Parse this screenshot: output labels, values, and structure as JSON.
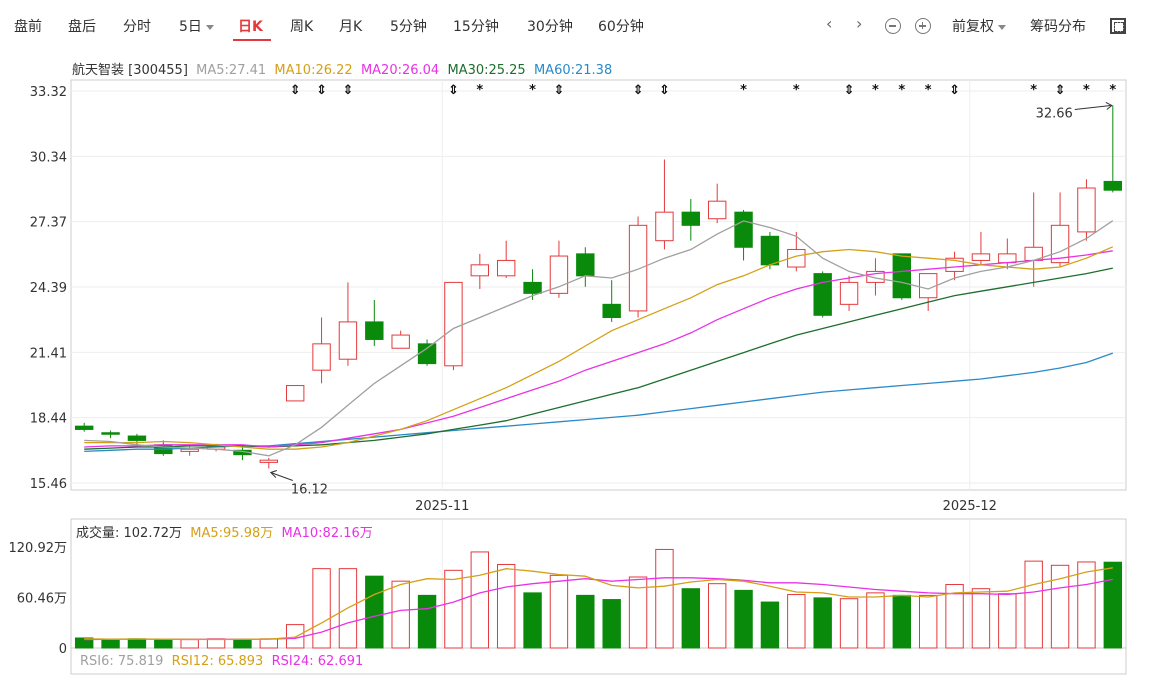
{
  "tabs": [
    {
      "label": "盘前",
      "dropdown": false
    },
    {
      "label": "盘后",
      "dropdown": false
    },
    {
      "label": "分时",
      "dropdown": false
    },
    {
      "label": "5日",
      "dropdown": true
    },
    {
      "label": "日K",
      "dropdown": false,
      "active": true
    },
    {
      "label": "周K",
      "dropdown": false
    },
    {
      "label": "月K",
      "dropdown": false
    },
    {
      "label": "5分钟",
      "dropdown": false
    },
    {
      "label": "15分钟",
      "dropdown": false
    },
    {
      "label": "30分钟",
      "dropdown": false
    },
    {
      "label": "60分钟",
      "dropdown": false
    }
  ],
  "controls": {
    "prev": "‹",
    "next": "›",
    "adjust_label": "前复权",
    "chip_label": "筹码分布",
    "icons": [
      "chevron-left-icon",
      "chevron-right-icon",
      "zoom-out-icon",
      "zoom-in-icon",
      "fullscreen-icon"
    ]
  },
  "info": {
    "stock": "航天智装 [300455]",
    "ma5": "MA5:27.41",
    "ma10": "MA10:26.22",
    "ma20": "MA20:26.04",
    "ma30": "MA30:25.25",
    "ma60": "MA60:21.38"
  },
  "volume_info": {
    "label": "成交量: 102.72万",
    "ma5": "MA5:95.98万",
    "ma10": "MA10:82.16万"
  },
  "rsi_info": {
    "rsi6": "RSI6: 75.819",
    "rsi12": "RSI12: 65.893",
    "rsi24": "RSI24: 62.691"
  },
  "colors": {
    "up": "#e4393c",
    "down": "#0a8a0a",
    "ma5": "#a0a0a0",
    "ma10": "#d4a017",
    "ma20": "#e832e8",
    "ma30": "#1e6e2e",
    "ma60": "#2a8ac8"
  },
  "chart_data": [
    {
      "type": "candlestick",
      "y_ticks": [
        "33.32",
        "30.34",
        "27.37",
        "24.39",
        "21.41",
        "18.44",
        "15.46"
      ],
      "ylim": [
        15.46,
        33.32
      ],
      "x_tick_labels": [
        {
          "label": "2025-11",
          "index": 14
        },
        {
          "label": "2025-12",
          "index": 34
        }
      ],
      "annotations": [
        {
          "label": "32.66",
          "index": 39,
          "value": 32.66
        },
        {
          "label": "16.12",
          "index": 7,
          "value": 16.12
        }
      ],
      "candles": [
        [
          18.05,
          17.9,
          18.2,
          17.8
        ],
        [
          17.75,
          17.7,
          17.85,
          17.5
        ],
        [
          17.6,
          17.4,
          17.7,
          17.2
        ],
        [
          17.2,
          16.8,
          17.4,
          16.7
        ],
        [
          16.9,
          17.0,
          17.2,
          16.7
        ],
        [
          17.0,
          17.1,
          17.25,
          16.9
        ],
        [
          16.95,
          16.75,
          17.1,
          16.5
        ],
        [
          16.4,
          16.5,
          16.6,
          16.12
        ],
        [
          19.2,
          19.9,
          19.9,
          19.2
        ],
        [
          20.6,
          21.8,
          23.0,
          20.0
        ],
        [
          21.1,
          22.8,
          24.6,
          20.8
        ],
        [
          22.8,
          22.0,
          23.8,
          21.7
        ],
        [
          21.6,
          22.2,
          22.4,
          21.6
        ],
        [
          21.8,
          20.9,
          22.0,
          20.8
        ],
        [
          20.8,
          24.6,
          24.6,
          20.6
        ],
        [
          24.9,
          25.4,
          25.9,
          24.3
        ],
        [
          24.9,
          25.6,
          26.5,
          24.8
        ],
        [
          24.6,
          24.1,
          25.2,
          23.8
        ],
        [
          24.1,
          25.8,
          26.5,
          23.9
        ],
        [
          25.9,
          24.9,
          26.2,
          24.4
        ],
        [
          23.6,
          23.0,
          24.7,
          22.8
        ],
        [
          23.3,
          27.2,
          27.6,
          23.0
        ],
        [
          26.5,
          27.8,
          30.2,
          26.1
        ],
        [
          27.8,
          27.2,
          28.4,
          26.5
        ],
        [
          27.5,
          28.3,
          29.1,
          27.3
        ],
        [
          27.8,
          26.2,
          27.9,
          25.6
        ],
        [
          26.7,
          25.4,
          26.9,
          25.2
        ],
        [
          25.3,
          26.1,
          26.9,
          25.1
        ],
        [
          25.0,
          23.1,
          25.1,
          23.0
        ],
        [
          23.6,
          24.6,
          24.9,
          23.3
        ],
        [
          24.6,
          25.1,
          25.7,
          24.0
        ],
        [
          25.9,
          23.9,
          25.9,
          23.8
        ],
        [
          23.9,
          25.0,
          25.0,
          23.3
        ],
        [
          25.1,
          25.7,
          26.0,
          24.7
        ],
        [
          25.6,
          25.9,
          26.9,
          25.4
        ],
        [
          25.5,
          25.9,
          26.6,
          25.2
        ],
        [
          25.6,
          26.2,
          28.7,
          24.4
        ],
        [
          25.5,
          27.2,
          28.7,
          25.3
        ],
        [
          26.9,
          28.9,
          29.3,
          26.5
        ],
        [
          29.2,
          28.8,
          32.66,
          28.7
        ]
      ],
      "ma5": [
        17.4,
        17.35,
        17.2,
        17.1,
        17.05,
        17.0,
        16.9,
        16.7,
        17.2,
        18.0,
        19.0,
        20.0,
        20.8,
        21.6,
        22.5,
        23.0,
        23.5,
        24.0,
        24.4,
        24.9,
        24.8,
        25.2,
        25.7,
        26.1,
        26.8,
        27.4,
        27.1,
        26.7,
        25.7,
        25.1,
        24.8,
        24.6,
        24.3,
        24.8,
        25.1,
        25.3,
        25.6,
        26.0,
        26.6,
        27.41
      ],
      "ma10": [
        17.3,
        17.3,
        17.3,
        17.35,
        17.3,
        17.2,
        17.1,
        17.0,
        17.0,
        17.1,
        17.3,
        17.6,
        17.9,
        18.3,
        18.8,
        19.3,
        19.8,
        20.4,
        21.0,
        21.7,
        22.4,
        22.9,
        23.4,
        23.9,
        24.5,
        24.9,
        25.4,
        25.8,
        26.0,
        26.1,
        26.0,
        25.8,
        25.7,
        25.6,
        25.4,
        25.3,
        25.2,
        25.3,
        25.7,
        26.22
      ],
      "ma20": [
        17.1,
        17.15,
        17.15,
        17.2,
        17.2,
        17.2,
        17.2,
        17.1,
        17.2,
        17.3,
        17.5,
        17.7,
        17.9,
        18.2,
        18.5,
        18.9,
        19.3,
        19.7,
        20.1,
        20.6,
        21.0,
        21.4,
        21.8,
        22.3,
        22.9,
        23.4,
        23.9,
        24.3,
        24.6,
        24.8,
        25.0,
        25.1,
        25.2,
        25.3,
        25.4,
        25.5,
        25.6,
        25.7,
        25.85,
        26.04
      ],
      "ma30": [
        17.0,
        17.05,
        17.1,
        17.1,
        17.15,
        17.15,
        17.15,
        17.1,
        17.15,
        17.2,
        17.3,
        17.4,
        17.55,
        17.7,
        17.9,
        18.1,
        18.3,
        18.6,
        18.9,
        19.2,
        19.5,
        19.8,
        20.2,
        20.6,
        21.0,
        21.4,
        21.8,
        22.2,
        22.5,
        22.8,
        23.1,
        23.4,
        23.7,
        24.0,
        24.2,
        24.4,
        24.6,
        24.8,
        25.0,
        25.25
      ],
      "ma60": [
        16.9,
        16.95,
        17.0,
        17.0,
        17.05,
        17.1,
        17.15,
        17.15,
        17.25,
        17.35,
        17.45,
        17.55,
        17.65,
        17.75,
        17.85,
        17.95,
        18.05,
        18.15,
        18.25,
        18.35,
        18.45,
        18.55,
        18.7,
        18.85,
        19.0,
        19.15,
        19.3,
        19.45,
        19.6,
        19.7,
        19.8,
        19.9,
        20.0,
        20.1,
        20.2,
        20.35,
        20.5,
        20.7,
        20.95,
        21.38
      ],
      "markers": [
        {
          "index": 8,
          "symbol": "⇕"
        },
        {
          "index": 9,
          "symbol": "⇕"
        },
        {
          "index": 10,
          "symbol": "⇕"
        },
        {
          "index": 14,
          "symbol": "⇕"
        },
        {
          "index": 15,
          "symbol": "*"
        },
        {
          "index": 17,
          "symbol": "*"
        },
        {
          "index": 18,
          "symbol": "⇕"
        },
        {
          "index": 21,
          "symbol": "⇕"
        },
        {
          "index": 22,
          "symbol": "⇕"
        },
        {
          "index": 25,
          "symbol": "*"
        },
        {
          "index": 27,
          "symbol": "*"
        },
        {
          "index": 29,
          "symbol": "⇕"
        },
        {
          "index": 30,
          "symbol": "*"
        },
        {
          "index": 31,
          "symbol": "*"
        },
        {
          "index": 32,
          "symbol": "*"
        },
        {
          "index": 33,
          "symbol": "⇕"
        },
        {
          "index": 36,
          "symbol": "*"
        },
        {
          "index": 37,
          "symbol": "⇕"
        },
        {
          "index": 38,
          "symbol": "*"
        },
        {
          "index": 39,
          "symbol": "*"
        }
      ]
    },
    {
      "type": "bar",
      "y_ticks": [
        "120.92万",
        "60.46万",
        "0"
      ],
      "ylim": [
        0,
        120.92
      ],
      "volumes": [
        12,
        9,
        11,
        10,
        10,
        11,
        10,
        11,
        28,
        95,
        95,
        86,
        80,
        63,
        93,
        115,
        100,
        66,
        87,
        63,
        58,
        85,
        118,
        71,
        77,
        69,
        55,
        64,
        60,
        59,
        66,
        63,
        63,
        76,
        71,
        65,
        104,
        99,
        103,
        102.72
      ],
      "ma5": [
        11,
        10.5,
        10.8,
        10.5,
        10.4,
        10.2,
        10.4,
        10.6,
        13,
        30,
        48,
        64,
        76,
        83,
        82,
        87,
        95,
        92,
        88,
        86,
        75,
        72,
        74,
        79,
        82,
        80,
        74,
        67,
        66,
        61,
        61,
        63,
        61,
        66,
        67,
        68,
        76,
        83,
        91,
        95.98
      ],
      "ma10": [
        10,
        10.5,
        10.6,
        10.5,
        10.4,
        10.4,
        10.4,
        10.6,
        11.6,
        19,
        30,
        38,
        45,
        47,
        55,
        66,
        73,
        77,
        80,
        83,
        80,
        82,
        84,
        84,
        83,
        81,
        78,
        78,
        76,
        73,
        70,
        68,
        66,
        65,
        65,
        64,
        67,
        72,
        76,
        82.16
      ]
    }
  ]
}
